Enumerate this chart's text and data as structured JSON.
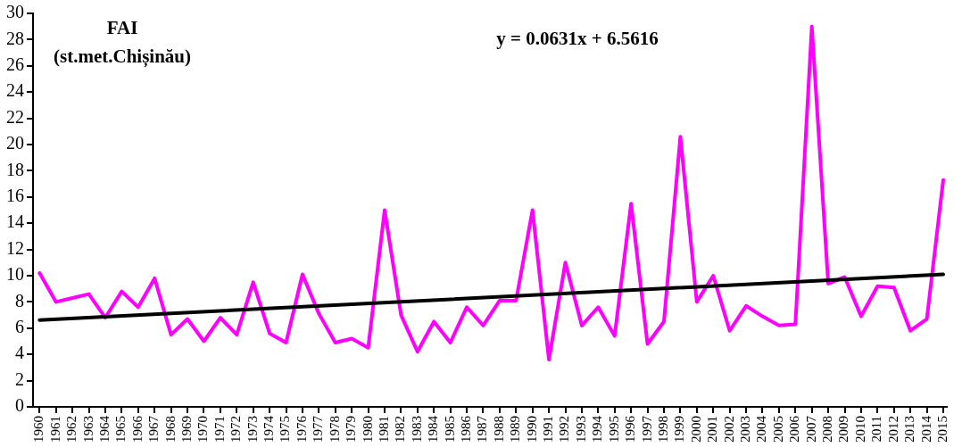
{
  "chart_data": {
    "type": "line",
    "annotations": [
      "FAI",
      "(st.met.Chișinău)",
      "y = 0.0631x + 6.5616"
    ],
    "x": [
      1960,
      1961,
      1962,
      1963,
      1964,
      1965,
      1966,
      1967,
      1968,
      1969,
      1970,
      1971,
      1972,
      1973,
      1974,
      1975,
      1976,
      1977,
      1978,
      1979,
      1980,
      1981,
      1982,
      1983,
      1984,
      1985,
      1986,
      1987,
      1988,
      1989,
      1990,
      1991,
      1992,
      1993,
      1994,
      1995,
      1996,
      1997,
      1998,
      1999,
      2000,
      2001,
      2002,
      2003,
      2004,
      2005,
      2006,
      2007,
      2008,
      2009,
      2010,
      2011,
      2012,
      2013,
      2014,
      2015
    ],
    "series": [
      {
        "color": "#ff00ff",
        "values": [
          10.2,
          8.0,
          8.3,
          8.6,
          6.8,
          8.8,
          7.6,
          9.8,
          5.5,
          6.7,
          5.0,
          6.8,
          5.5,
          9.5,
          5.6,
          4.9,
          10.1,
          7.1,
          4.9,
          5.2,
          4.5,
          15.0,
          7.0,
          4.2,
          6.5,
          4.9,
          7.6,
          6.2,
          8.1,
          8.1,
          15.0,
          3.6,
          11.0,
          6.2,
          7.6,
          5.4,
          15.5,
          4.8,
          6.5,
          20.6,
          8.0,
          10.0,
          5.8,
          7.7,
          6.9,
          6.2,
          6.3,
          29.0,
          9.4,
          9.9,
          6.9,
          9.2,
          9.1,
          5.8,
          6.7,
          17.3
        ]
      },
      {
        "type": "line",
        "color": "#000000",
        "x": [
          1960,
          2015
        ],
        "values": [
          6.62,
          10.1
        ]
      }
    ],
    "xlim": [
      1959.6,
      2015.2
    ],
    "xticks": [
      1960,
      1961,
      1962,
      1963,
      1964,
      1965,
      1966,
      1967,
      1968,
      1969,
      1970,
      1971,
      1972,
      1973,
      1974,
      1975,
      1976,
      1977,
      1978,
      1979,
      1980,
      1981,
      1982,
      1983,
      1984,
      1985,
      1986,
      1987,
      1988,
      1989,
      1990,
      1991,
      1992,
      1993,
      1994,
      1995,
      1996,
      1997,
      1998,
      1999,
      2000,
      2001,
      2002,
      2003,
      2004,
      2005,
      2006,
      2007,
      2008,
      2009,
      2010,
      2011,
      2012,
      2013,
      2014,
      2015
    ],
    "ylim": [
      0,
      30
    ],
    "yticks": [
      0,
      2,
      4,
      6,
      8,
      10,
      12,
      14,
      16,
      18,
      20,
      22,
      24,
      26,
      28,
      30
    ],
    "grid": false,
    "legend": false,
    "marker": "none",
    "line_style": "solid"
  }
}
